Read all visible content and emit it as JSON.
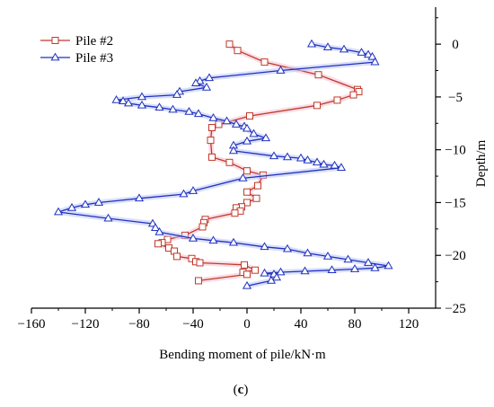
{
  "chart_data": {
    "type": "line",
    "xlabel": "Bending moment of pile/kN·m",
    "ylabel": "Depth/m",
    "panel_label_open": "(",
    "panel_label_letter": "c",
    "panel_label_close": ")",
    "xlim": [
      -160,
      140
    ],
    "ylim": [
      -25,
      3.5
    ],
    "xticks": [
      -160,
      -120,
      -80,
      -40,
      0,
      40,
      80,
      120
    ],
    "xtick_labels": [
      "−160",
      "−120",
      "−80",
      "−40",
      "0",
      "40",
      "80",
      "120"
    ],
    "yticks": [
      0,
      -5,
      -10,
      -15,
      -20,
      -25
    ],
    "ytick_labels": [
      "0",
      "−5",
      "−10",
      "−15",
      "−20",
      "−25"
    ],
    "legend_position": "top-left",
    "grid": false,
    "series": [
      {
        "name": "Pile #2",
        "color": "#c0392b",
        "glow": "#f6c1cf",
        "marker": "square",
        "points": [
          [
            -13,
            0.0
          ],
          [
            -7,
            -0.6
          ],
          [
            13,
            -1.7
          ],
          [
            53,
            -2.9
          ],
          [
            82,
            -4.3
          ],
          [
            83,
            -4.5
          ],
          [
            79,
            -4.8
          ],
          [
            67,
            -5.3
          ],
          [
            52,
            -5.8
          ],
          [
            2,
            -6.8
          ],
          [
            -21,
            -7.6
          ],
          [
            -26,
            -7.9
          ],
          [
            -27,
            -9.1
          ],
          [
            -26,
            -10.7
          ],
          [
            -13,
            -11.2
          ],
          [
            0,
            -12.0
          ],
          [
            12,
            -12.4
          ],
          [
            8,
            -13.4
          ],
          [
            0,
            -14.0
          ],
          [
            7,
            -14.6
          ],
          [
            0,
            -15.0
          ],
          [
            -4,
            -15.4
          ],
          [
            -8,
            -15.5
          ],
          [
            -5,
            -15.8
          ],
          [
            -9,
            -16.0
          ],
          [
            -31,
            -16.6
          ],
          [
            -32,
            -16.9
          ],
          [
            -33,
            -17.3
          ],
          [
            -46,
            -18.1
          ],
          [
            -59,
            -18.5
          ],
          [
            -63,
            -18.8
          ],
          [
            -66,
            -18.9
          ],
          [
            -58,
            -19.3
          ],
          [
            -54,
            -19.6
          ],
          [
            -52,
            -20.1
          ],
          [
            -41,
            -20.3
          ],
          [
            -38,
            -20.6
          ],
          [
            -35,
            -20.7
          ],
          [
            -2,
            -20.9
          ],
          [
            6,
            -21.4
          ],
          [
            -3,
            -21.6
          ],
          [
            0,
            -21.8
          ],
          [
            -36,
            -22.4
          ]
        ]
      },
      {
        "name": "Pile #3",
        "color": "#1f31bf",
        "glow": "#bcc4f7",
        "marker": "triangle",
        "points": [
          [
            48,
            0.0
          ],
          [
            60,
            -0.3
          ],
          [
            72,
            -0.5
          ],
          [
            85,
            -0.8
          ],
          [
            90,
            -1.0
          ],
          [
            93,
            -1.2
          ],
          [
            95,
            -1.7
          ],
          [
            25,
            -2.5
          ],
          [
            -28,
            -3.2
          ],
          [
            -35,
            -3.5
          ],
          [
            -38,
            -3.7
          ],
          [
            -30,
            -4.1
          ],
          [
            -50,
            -4.5
          ],
          [
            -52,
            -4.8
          ],
          [
            -78,
            -5.0
          ],
          [
            -97,
            -5.3
          ],
          [
            -92,
            -5.4
          ],
          [
            -88,
            -5.6
          ],
          [
            -78,
            -5.8
          ],
          [
            -65,
            -6.0
          ],
          [
            -55,
            -6.2
          ],
          [
            -43,
            -6.4
          ],
          [
            -36,
            -6.6
          ],
          [
            -25,
            -7.0
          ],
          [
            -15,
            -7.3
          ],
          [
            -8,
            -7.6
          ],
          [
            -2,
            -7.8
          ],
          [
            0,
            -8.0
          ],
          [
            5,
            -8.5
          ],
          [
            14,
            -8.9
          ],
          [
            0,
            -9.2
          ],
          [
            -10,
            -9.6
          ],
          [
            -10,
            -10.1
          ],
          [
            20,
            -10.6
          ],
          [
            30,
            -10.7
          ],
          [
            40,
            -10.8
          ],
          [
            45,
            -11.0
          ],
          [
            52,
            -11.2
          ],
          [
            57,
            -11.4
          ],
          [
            65,
            -11.5
          ],
          [
            70,
            -11.7
          ],
          [
            -3,
            -12.7
          ],
          [
            -40,
            -13.9
          ],
          [
            -47,
            -14.2
          ],
          [
            -80,
            -14.6
          ],
          [
            -110,
            -15.0
          ],
          [
            -120,
            -15.2
          ],
          [
            -130,
            -15.5
          ],
          [
            -140,
            -15.9
          ],
          [
            -103,
            -16.5
          ],
          [
            -70,
            -17.0
          ],
          [
            -68,
            -17.4
          ],
          [
            -65,
            -17.8
          ],
          [
            -40,
            -18.4
          ],
          [
            -25,
            -18.6
          ],
          [
            -10,
            -18.8
          ],
          [
            13,
            -19.2
          ],
          [
            30,
            -19.4
          ],
          [
            45,
            -19.8
          ],
          [
            60,
            -20.1
          ],
          [
            75,
            -20.4
          ],
          [
            90,
            -20.7
          ],
          [
            105,
            -21.0
          ],
          [
            95,
            -21.2
          ],
          [
            80,
            -21.3
          ],
          [
            63,
            -21.4
          ],
          [
            43,
            -21.5
          ],
          [
            25,
            -21.6
          ],
          [
            13,
            -21.7
          ],
          [
            20,
            -21.8
          ],
          [
            22,
            -22.1
          ],
          [
            18,
            -22.4
          ],
          [
            0,
            -22.9
          ]
        ]
      }
    ]
  }
}
